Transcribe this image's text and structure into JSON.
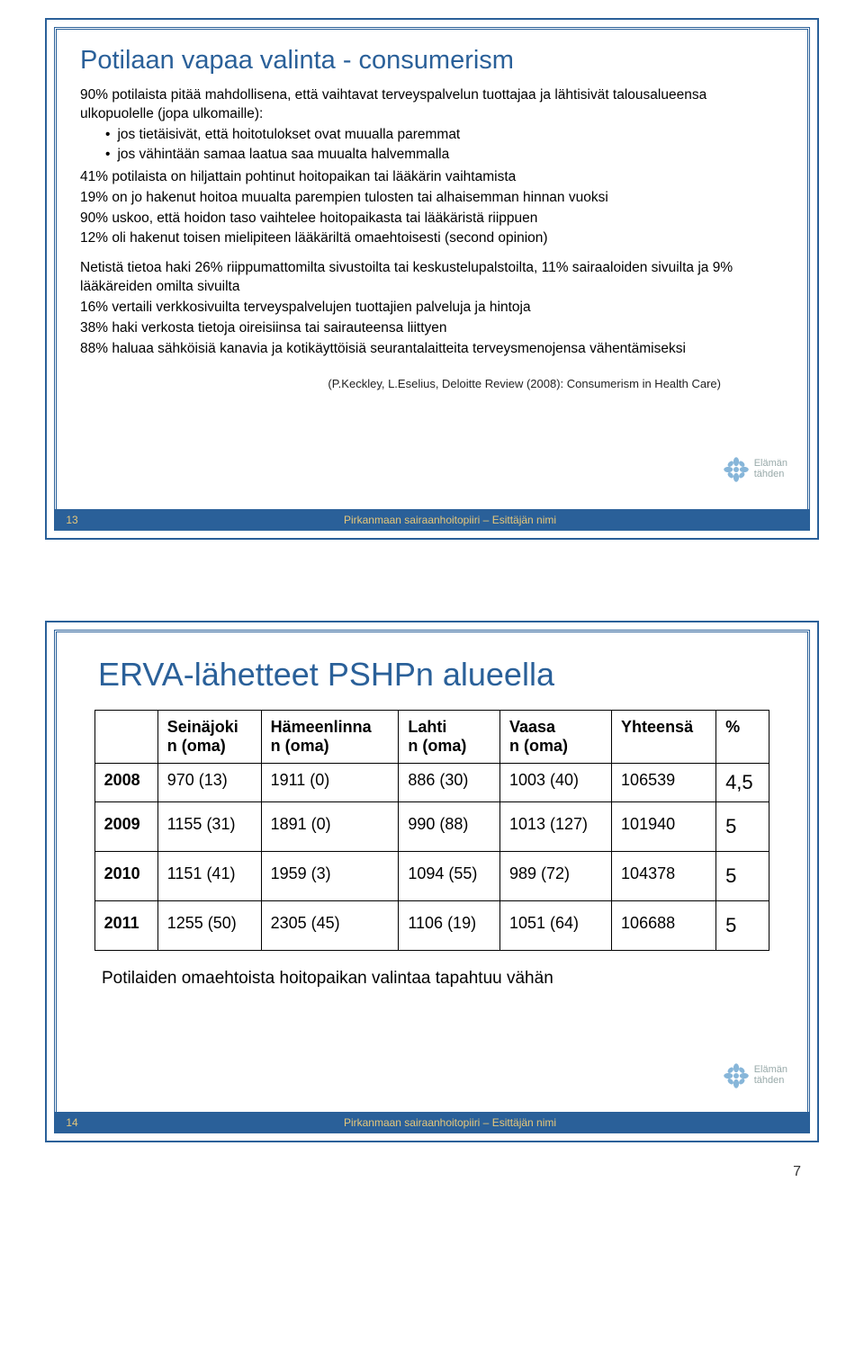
{
  "slide1": {
    "title": "Potilaan vapaa valinta - consumerism",
    "p1": "90% potilaista pitää mahdollisena, että vaihtavat terveyspalvelun tuottajaa ja lähtisivät talousalueensa ulkopuolelle (jopa ulkomaille):",
    "b1": "jos tietäisivät, että hoitotulokset ovat muualla paremmat",
    "b2": "jos vähintään samaa laatua saa muualta halvemmalla",
    "p2": "41% potilaista on hiljattain pohtinut hoitopaikan tai lääkärin vaihtamista",
    "p3": "19% on jo hakenut hoitoa muualta parempien tulosten tai alhaisemman hinnan vuoksi",
    "p4": "90% uskoo, että hoidon taso vaihtelee hoitopaikasta tai lääkäristä riippuen",
    "p5": "12% oli hakenut toisen mielipiteen lääkäriltä omaehtoisesti (second opinion)",
    "p6": "Netistä tietoa haki 26% riippumattomilta sivustoilta tai keskustelupalstoilta, 11% sairaaloiden sivuilta ja 9% lääkäreiden omilta sivuilta",
    "p7": "16% vertaili verkkosivuilta terveyspalvelujen tuottajien palveluja ja hintoja",
    "p8": "38% haki verkosta tietoja oireisiinsa tai sairauteensa liittyen",
    "p9": "88% haluaa sähköisiä kanavia ja kotikäyttöisiä seurantalaitteita terveysmenojensa vähentämiseksi",
    "citation": "(P.Keckley, L.Eselius, Deloitte Review (2008): Consumerism in Health Care)",
    "slideNum": "13",
    "footerText": "Pirkanmaan sairaanhoitopiiri – Esittäjän nimi"
  },
  "slide2": {
    "title": "ERVA-lähetteet PSHPn alueella",
    "columns": [
      "",
      "Seinäjoki n (oma)",
      "Hämeenlinna n (oma)",
      "Lahti n (oma)",
      "Vaasa n (oma)",
      "Yhteensä",
      "%"
    ],
    "rows": [
      [
        "2008",
        "970 (13)",
        "1911 (0)",
        "886 (30)",
        "1003 (40)",
        "106539",
        "4,5"
      ],
      [
        "2009",
        "1155 (31)",
        "1891 (0)",
        "990 (88)",
        "1013 (127)",
        "101940",
        "5"
      ],
      [
        "2010",
        "1151 (41)",
        "1959 (3)",
        "1094 (55)",
        "989 (72)",
        "104378",
        "5"
      ],
      [
        "2011",
        "1255 (50)",
        "2305 (45)",
        "1106 (19)",
        "1051 (64)",
        "106688",
        "5"
      ]
    ],
    "note": "Potilaiden omaehtoista  hoitopaikan valintaa tapahtuu vähän",
    "slideNum": "14",
    "footerText": "Pirkanmaan sairaanhoitopiiri – Esittäjän nimi"
  },
  "logo": {
    "line1": "Elämän",
    "line2": "tähden"
  },
  "pageNumber": "7"
}
